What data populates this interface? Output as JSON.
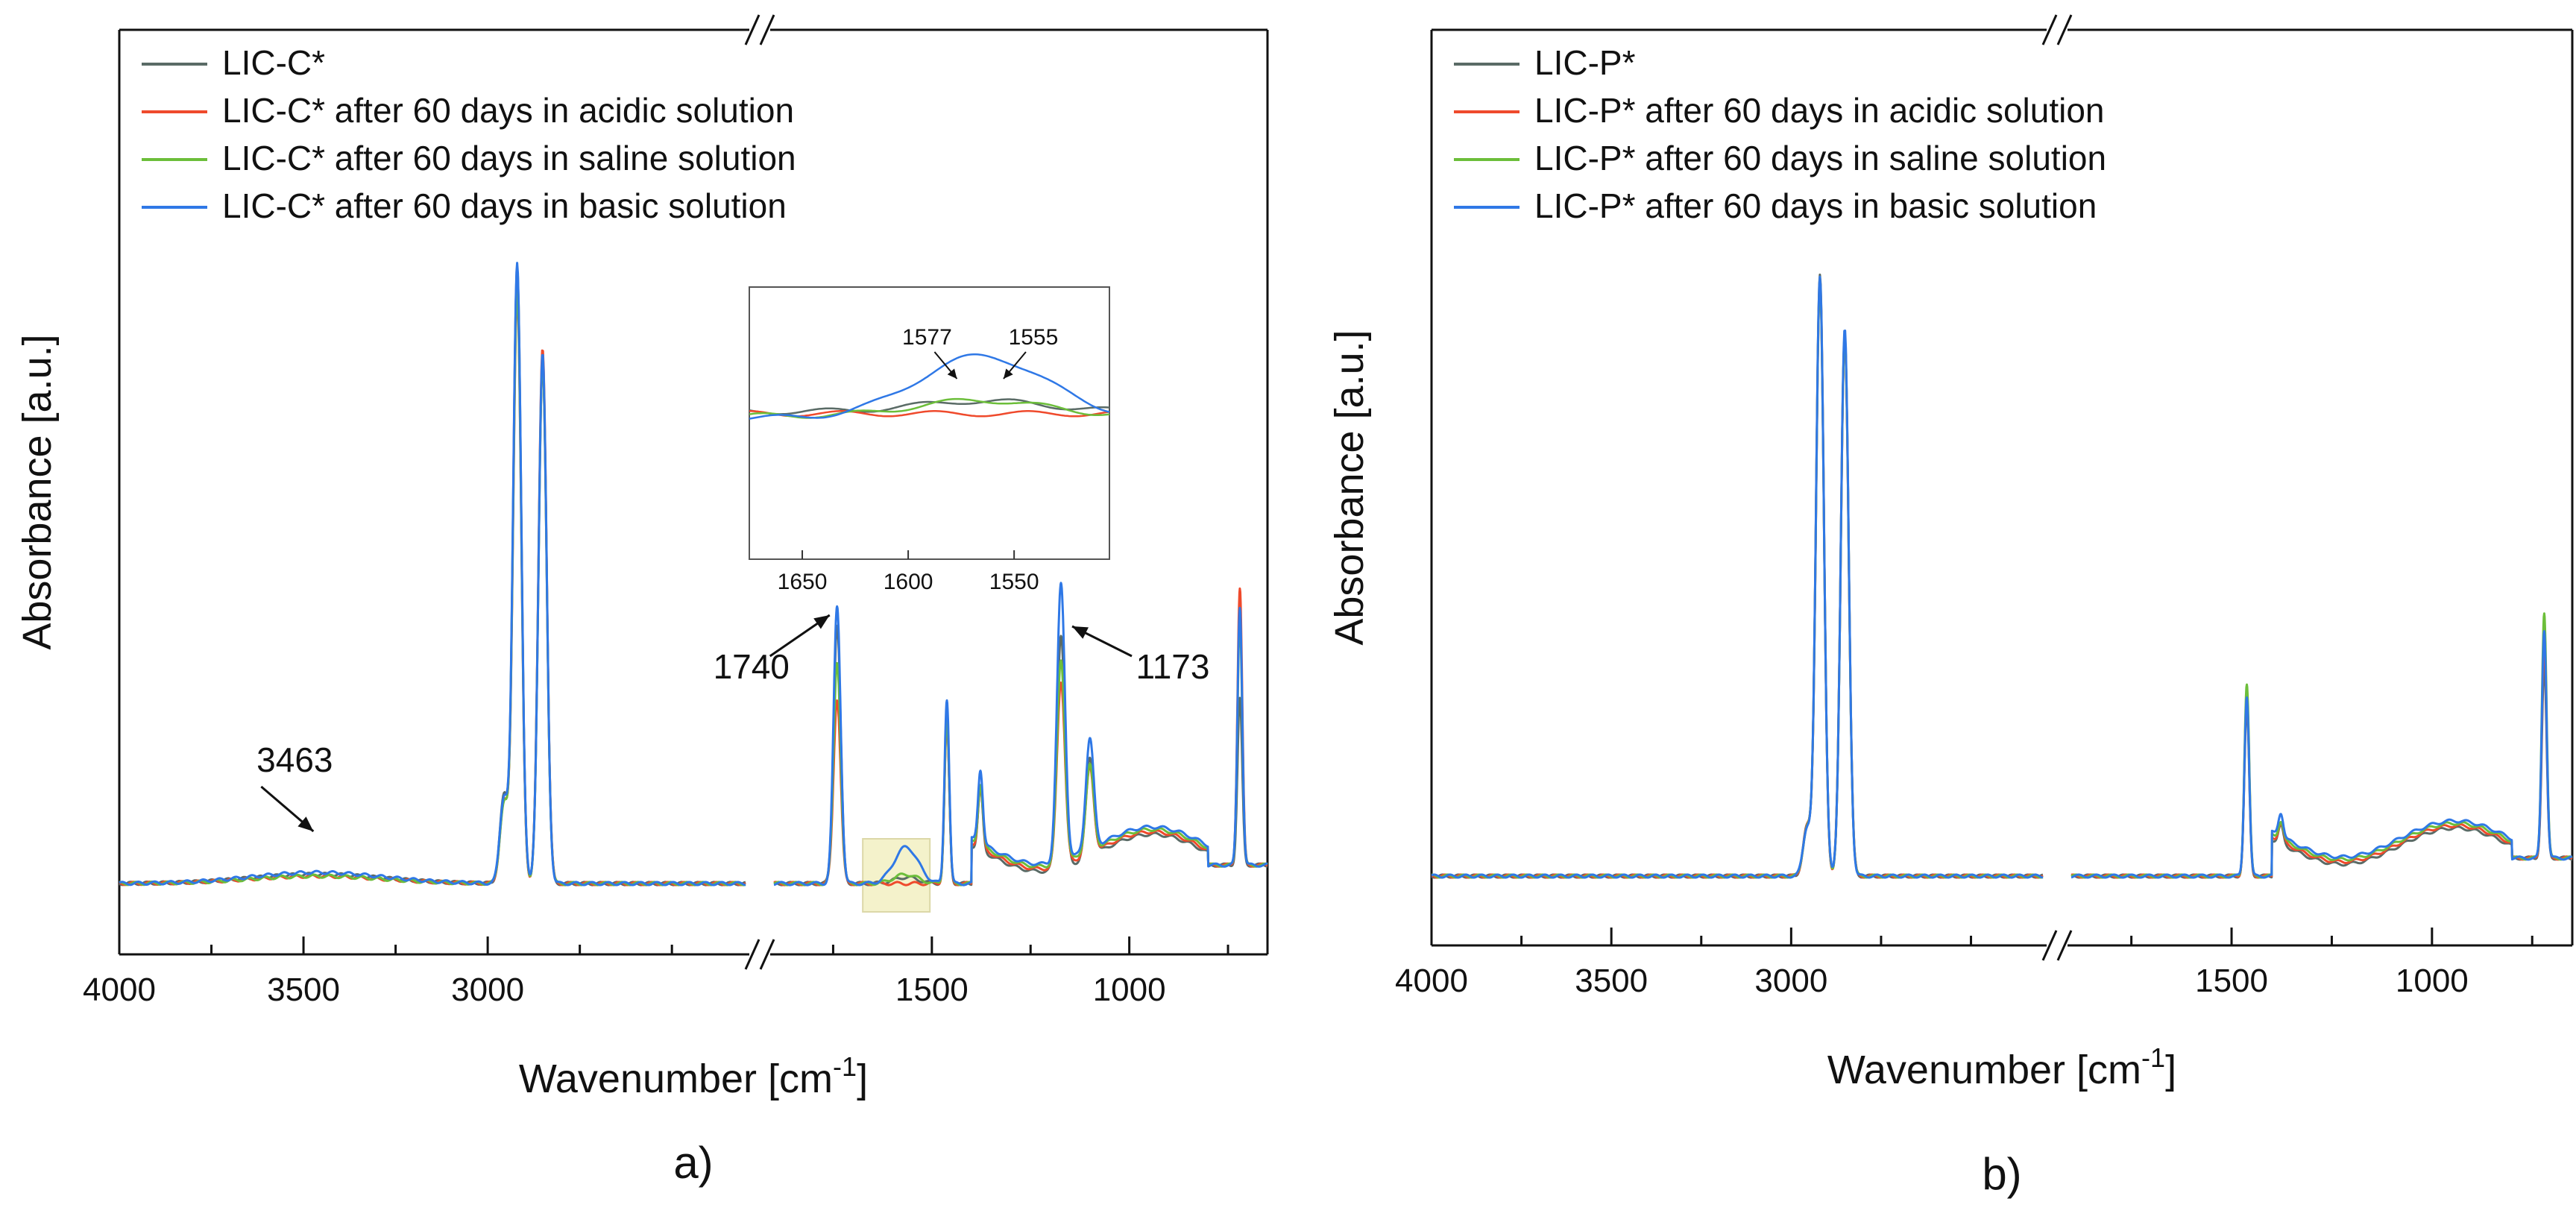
{
  "colors": {
    "pristine": "#5a6b66",
    "acidic": "#ef4a2c",
    "saline": "#6cbe3a",
    "basic": "#2f78e6",
    "inset_highlight": "#f3f0c2",
    "axis": "#111111"
  },
  "chart_data": [
    {
      "panel_label": "a)",
      "type": "line",
      "title": "",
      "xlabel": "Wavenumber [cm",
      "xlabel_superscript": "-1",
      "xlabel_close": "]",
      "ylabel": "Absorbance [a.u.]",
      "x_axis_reversed": true,
      "x_segments": [
        [
          4000,
          2300
        ],
        [
          1900,
          650
        ]
      ],
      "axis_break_marker": "//",
      "ylim": [
        0,
        1
      ],
      "y_ticks_shown": false,
      "x_ticks": [
        4000,
        3500,
        3000,
        1500,
        1000
      ],
      "x_tick_labels": [
        "4000",
        "3500",
        "3000",
        "1500",
        "1000"
      ],
      "legend_position": "top-left",
      "series": [
        {
          "name": "LIC-C*",
          "key": "pristine",
          "peaks": [
            [
              3463,
              0.015
            ],
            [
              2956,
              0.14
            ],
            [
              2920,
              1.0
            ],
            [
              2851,
              0.85
            ],
            [
              1740,
              0.42
            ],
            [
              1577,
              0.005
            ],
            [
              1555,
              0.006
            ],
            [
              1462,
              0.27
            ],
            [
              1377,
              0.1
            ],
            [
              1173,
              0.38
            ],
            [
              1100,
              0.16
            ],
            [
              720,
              0.27
            ]
          ]
        },
        {
          "name": "LIC-C* after 60 days in acidic solution",
          "key": "acidic",
          "peaks": [
            [
              3463,
              0.012
            ],
            [
              2956,
              0.13
            ],
            [
              2920,
              0.96
            ],
            [
              2851,
              0.87
            ],
            [
              1740,
              0.3
            ],
            [
              1577,
              0.0
            ],
            [
              1555,
              0.0
            ],
            [
              1462,
              0.26
            ],
            [
              1377,
              0.1
            ],
            [
              1173,
              0.3
            ],
            [
              1100,
              0.14
            ],
            [
              720,
              0.45
            ]
          ]
        },
        {
          "name": "LIC-C* after 60 days in saline solution",
          "key": "saline",
          "peaks": [
            [
              3463,
              0.012
            ],
            [
              2956,
              0.13
            ],
            [
              2920,
              0.97
            ],
            [
              2851,
              0.85
            ],
            [
              1740,
              0.36
            ],
            [
              1577,
              0.008
            ],
            [
              1555,
              0.008
            ],
            [
              1462,
              0.27
            ],
            [
              1377,
              0.1
            ],
            [
              1173,
              0.33
            ],
            [
              1100,
              0.14
            ],
            [
              720,
              0.4
            ]
          ]
        },
        {
          "name": "LIC-C* after 60 days in basic solution",
          "key": "basic",
          "peaks": [
            [
              3463,
              0.018
            ],
            [
              2956,
              0.14
            ],
            [
              2920,
              1.01
            ],
            [
              2851,
              0.86
            ],
            [
              1740,
              0.45
            ],
            [
              1577,
              0.03
            ],
            [
              1555,
              0.034
            ],
            [
              1462,
              0.3
            ],
            [
              1377,
              0.12
            ],
            [
              1173,
              0.45
            ],
            [
              1100,
              0.18
            ],
            [
              720,
              0.42
            ]
          ]
        }
      ],
      "annotations": [
        {
          "text": "3463",
          "x": 3463
        },
        {
          "text": "1740",
          "x": 1740
        },
        {
          "text": "1173",
          "x": 1173
        }
      ],
      "inset": {
        "x_range": [
          1675,
          1505
        ],
        "x_ticks": [
          1650,
          1600,
          1550
        ],
        "x_tick_labels": [
          "1650",
          "1600",
          "1550"
        ],
        "highlight_range": [
          1675,
          1505
        ],
        "annotations": [
          {
            "text": "1577",
            "x": 1577
          },
          {
            "text": "1555",
            "x": 1555
          }
        ]
      }
    },
    {
      "panel_label": "b)",
      "type": "line",
      "title": "",
      "xlabel": "Wavenumber [cm",
      "xlabel_superscript": "-1",
      "xlabel_close": "]",
      "ylabel": "Absorbance [a.u.]",
      "x_axis_reversed": true,
      "x_segments": [
        [
          4000,
          2300
        ],
        [
          1900,
          650
        ]
      ],
      "axis_break_marker": "//",
      "ylim": [
        0,
        1
      ],
      "y_ticks_shown": false,
      "x_ticks": [
        4000,
        3500,
        3000,
        1500,
        1000
      ],
      "x_tick_labels": [
        "4000",
        "3500",
        "3000",
        "1500",
        "1000"
      ],
      "legend_position": "top-left",
      "series": [
        {
          "name": "LIC-P*",
          "key": "pristine",
          "peaks": [
            [
              2956,
              0.08
            ],
            [
              2920,
              1.0
            ],
            [
              2851,
              0.9
            ],
            [
              1462,
              0.28
            ],
            [
              1377,
              0.03
            ],
            [
              720,
              0.32
            ]
          ]
        },
        {
          "name": "LIC-P* after 60 days in acidic solution",
          "key": "acidic",
          "peaks": [
            [
              2956,
              0.08
            ],
            [
              2920,
              0.99
            ],
            [
              2851,
              0.9
            ],
            [
              1462,
              0.3
            ],
            [
              1377,
              0.03
            ],
            [
              720,
              0.36
            ]
          ]
        },
        {
          "name": "LIC-P* after 60 days in saline solution",
          "key": "saline",
          "peaks": [
            [
              2956,
              0.08
            ],
            [
              2920,
              0.99
            ],
            [
              2851,
              0.9
            ],
            [
              1462,
              0.32
            ],
            [
              1377,
              0.03
            ],
            [
              720,
              0.41
            ]
          ]
        },
        {
          "name": "LIC-P* after 60 days in basic solution",
          "key": "basic",
          "peaks": [
            [
              2956,
              0.08
            ],
            [
              2920,
              1.0
            ],
            [
              2851,
              0.91
            ],
            [
              1462,
              0.3
            ],
            [
              1377,
              0.04
            ],
            [
              720,
              0.38
            ]
          ]
        }
      ],
      "annotations": []
    }
  ]
}
